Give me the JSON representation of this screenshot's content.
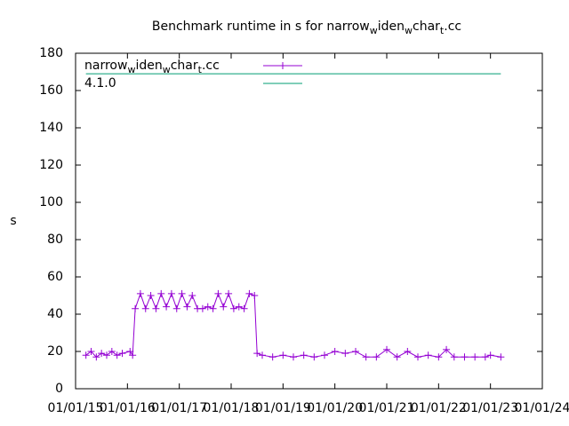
{
  "chart_data": {
    "type": "line",
    "title": [
      "Benchmark runtime in s for narrow",
      "w",
      "iden",
      "w",
      "char",
      "t",
      ".cc"
    ],
    "ylabel": "s",
    "xlim": [
      2015,
      2024
    ],
    "xticks": [
      {
        "value": 2015,
        "label": "01/01/15"
      },
      {
        "value": 2016,
        "label": "01/01/16"
      },
      {
        "value": 2017,
        "label": "01/01/17"
      },
      {
        "value": 2018,
        "label": "01/01/18"
      },
      {
        "value": 2019,
        "label": "01/01/19"
      },
      {
        "value": 2020,
        "label": "01/01/20"
      },
      {
        "value": 2021,
        "label": "01/01/21"
      },
      {
        "value": 2022,
        "label": "01/01/22"
      },
      {
        "value": 2023,
        "label": "01/01/23"
      },
      {
        "value": 2024,
        "label": "01/01/24"
      }
    ],
    "ylim": [
      0,
      180
    ],
    "yticks": [
      0,
      20,
      40,
      60,
      80,
      100,
      120,
      140,
      160,
      180
    ],
    "legend": "top-left",
    "series": [
      {
        "name": [
          "narrow",
          "w",
          "iden",
          "w",
          "char",
          "t",
          ".cc"
        ],
        "color": "#9400d3",
        "marker": "plus",
        "x": [
          2015.2,
          2015.3,
          2015.4,
          2015.5,
          2015.6,
          2015.7,
          2015.8,
          2015.9,
          2016.05,
          2016.1,
          2016.15,
          2016.25,
          2016.35,
          2016.45,
          2016.55,
          2016.65,
          2016.75,
          2016.85,
          2016.95,
          2017.05,
          2017.15,
          2017.25,
          2017.35,
          2017.45,
          2017.55,
          2017.65,
          2017.75,
          2017.85,
          2017.95,
          2018.05,
          2018.15,
          2018.25,
          2018.35,
          2018.45,
          2018.5,
          2018.6,
          2018.8,
          2019.0,
          2019.2,
          2019.4,
          2019.6,
          2019.8,
          2020.0,
          2020.2,
          2020.4,
          2020.6,
          2020.8,
          2021.0,
          2021.2,
          2021.4,
          2021.6,
          2021.8,
          2022.0,
          2022.15,
          2022.3,
          2022.5,
          2022.7,
          2022.9,
          2023.0,
          2023.2
        ],
        "values": [
          18,
          20,
          17,
          19,
          18,
          20,
          18,
          19,
          20,
          18,
          43,
          51,
          43,
          50,
          43,
          51,
          44,
          51,
          43,
          51,
          44,
          50,
          43,
          43,
          44,
          43,
          51,
          44,
          51,
          43,
          44,
          43,
          51,
          50,
          19,
          18,
          17,
          18,
          17,
          18,
          17,
          18,
          20,
          19,
          20,
          17,
          17,
          21,
          17,
          20,
          17,
          18,
          17,
          21,
          17,
          17,
          17,
          17,
          18,
          17
        ]
      },
      {
        "name": [
          "4.1.0"
        ],
        "color": "#009e73",
        "x": [
          2015.2,
          2023.2
        ],
        "values": [
          169,
          169
        ]
      }
    ]
  }
}
